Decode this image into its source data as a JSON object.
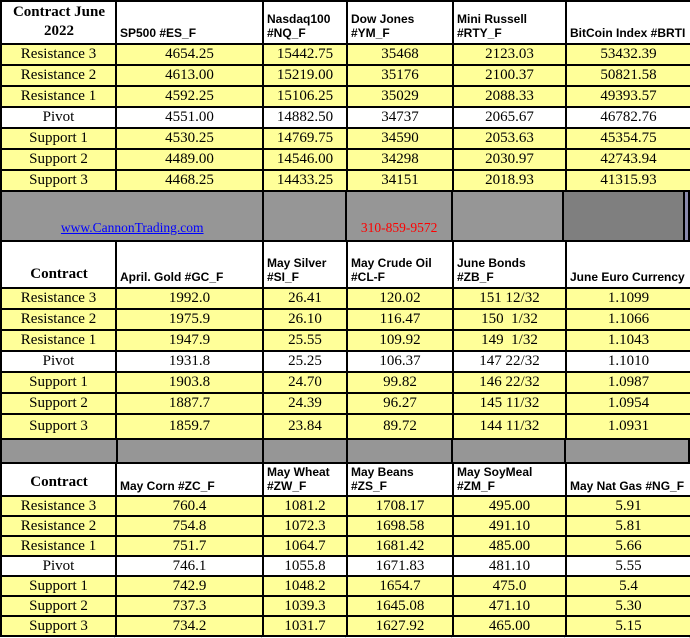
{
  "brand": {
    "website": "www.CannonTrading.com",
    "phone": "310-859-9572"
  },
  "colors": {
    "row_yellow": "#ffff99",
    "band_gray": "#969696",
    "band_dark_gray": "#7f7f7f",
    "band_edge_sliver": "#8a8aad",
    "link_blue": "#0000ff",
    "phone_red": "#ff0000"
  },
  "row_labels": [
    "Resistance 3",
    "Resistance 2",
    "Resistance 1",
    "Pivot",
    "Support 1",
    "Support 2",
    "Support 3"
  ],
  "sections": [
    {
      "corner": "Contract June 2022",
      "columns": [
        "SP500 #ES_F",
        "Nasdaq100\n#NQ_F",
        "Dow Jones\n#YM_F",
        "Mini Russell\n#RTY_F",
        "BitCoin Index #BRTI"
      ],
      "rows": [
        [
          "4654.25",
          "15442.75",
          "35468",
          "2123.03",
          "53432.39"
        ],
        [
          "4613.00",
          "15219.00",
          "35176",
          "2100.37",
          "50821.58"
        ],
        [
          "4592.25",
          "15106.25",
          "35029",
          "2088.33",
          "49393.57"
        ],
        [
          "4551.00",
          "14882.50",
          "34737",
          "2065.67",
          "46782.76"
        ],
        [
          "4530.25",
          "14769.75",
          "34590",
          "2053.63",
          "45354.75"
        ],
        [
          "4489.00",
          "14546.00",
          "34298",
          "2030.97",
          "42743.94"
        ],
        [
          "4468.25",
          "14433.25",
          "34151",
          "2018.93",
          "41315.93"
        ]
      ]
    },
    {
      "corner": "Contract",
      "columns": [
        "April. Gold #GC_F",
        "May Silver\n#SI_F",
        "May Crude Oil\n#CL-F",
        "June Bonds\n#ZB_F",
        "June  Euro Currency"
      ],
      "rows": [
        [
          "1992.0",
          "26.41",
          "120.02",
          "151 12/32",
          "1.1099"
        ],
        [
          "1975.9",
          "26.10",
          "116.47",
          "150  1/32",
          "1.1066"
        ],
        [
          "1947.9",
          "25.55",
          "109.92",
          "149  1/32",
          "1.1043"
        ],
        [
          "1931.8",
          "25.25",
          "106.37",
          "147 22/32",
          "1.1010"
        ],
        [
          "1903.8",
          "24.70",
          "99.82",
          "146 22/32",
          "1.0987"
        ],
        [
          "1887.7",
          "24.39",
          "96.27",
          "145 11/32",
          "1.0954"
        ],
        [
          "1859.7",
          "23.84",
          "89.72",
          "144 11/32",
          "1.0931"
        ]
      ]
    },
    {
      "corner": "Contract",
      "columns": [
        "May Corn #ZC_F",
        "May  Wheat\n#ZW_F",
        "May Beans #ZS_F",
        "May SoyMeal\n#ZM_F",
        "May Nat Gas #NG_F"
      ],
      "rows": [
        [
          "760.4",
          "1081.2",
          "1708.17",
          "495.00",
          "5.91"
        ],
        [
          "754.8",
          "1072.3",
          "1698.58",
          "491.10",
          "5.81"
        ],
        [
          "751.7",
          "1064.7",
          "1681.42",
          "485.00",
          "5.66"
        ],
        [
          "746.1",
          "1055.8",
          "1671.83",
          "481.10",
          "5.55"
        ],
        [
          "742.9",
          "1048.2",
          "1654.7",
          "475.0",
          "5.4"
        ],
        [
          "737.3",
          "1039.3",
          "1645.08",
          "471.10",
          "5.30"
        ],
        [
          "734.2",
          "1031.7",
          "1627.92",
          "465.00",
          "5.15"
        ]
      ]
    }
  ]
}
